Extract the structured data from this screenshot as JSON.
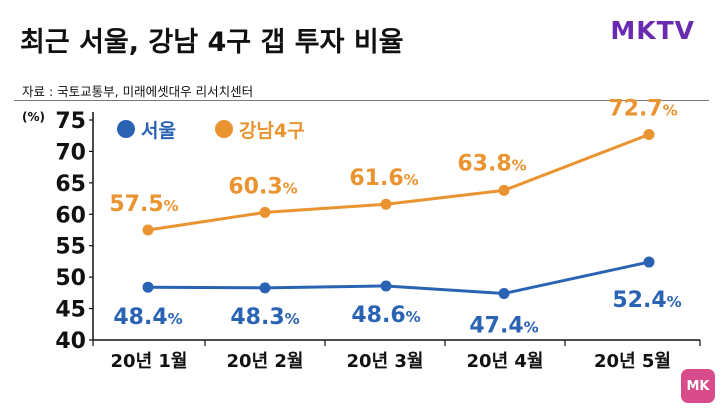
{
  "header": {
    "title": "최근 서울, 강남 4구 갭 투자 비율",
    "source": "자료 : 국토교통부, 미래에셋대우 리서치센터",
    "brand": "MKTV",
    "corner_badge": "MK"
  },
  "colors": {
    "seoul": "#2a63b3",
    "gangnam": "#ea9431",
    "axis": "#111111"
  },
  "chart_data": {
    "type": "line",
    "title": "최근 서울, 강남 4구 갭 투자 비율",
    "categories": [
      "20년 1월",
      "20년 2월",
      "20년 3월",
      "20년 4월",
      "20년 5월"
    ],
    "series": [
      {
        "name": "서울",
        "values": [
          48.4,
          48.3,
          48.6,
          47.4,
          52.4
        ],
        "labels": [
          "48.4",
          "48.3",
          "48.6",
          "47.4",
          "52.4"
        ]
      },
      {
        "name": "강남4구",
        "values": [
          57.5,
          60.3,
          61.6,
          63.8,
          72.7
        ],
        "labels": [
          "57.5",
          "60.3",
          "61.6",
          "63.8",
          "72.7"
        ]
      }
    ],
    "ylabel": "(%)",
    "ylim": [
      40,
      75
    ],
    "yticks": [
      40,
      45,
      50,
      55,
      60,
      65,
      70,
      75
    ],
    "value_suffix": "%",
    "grid": false,
    "legend": "top-left"
  }
}
